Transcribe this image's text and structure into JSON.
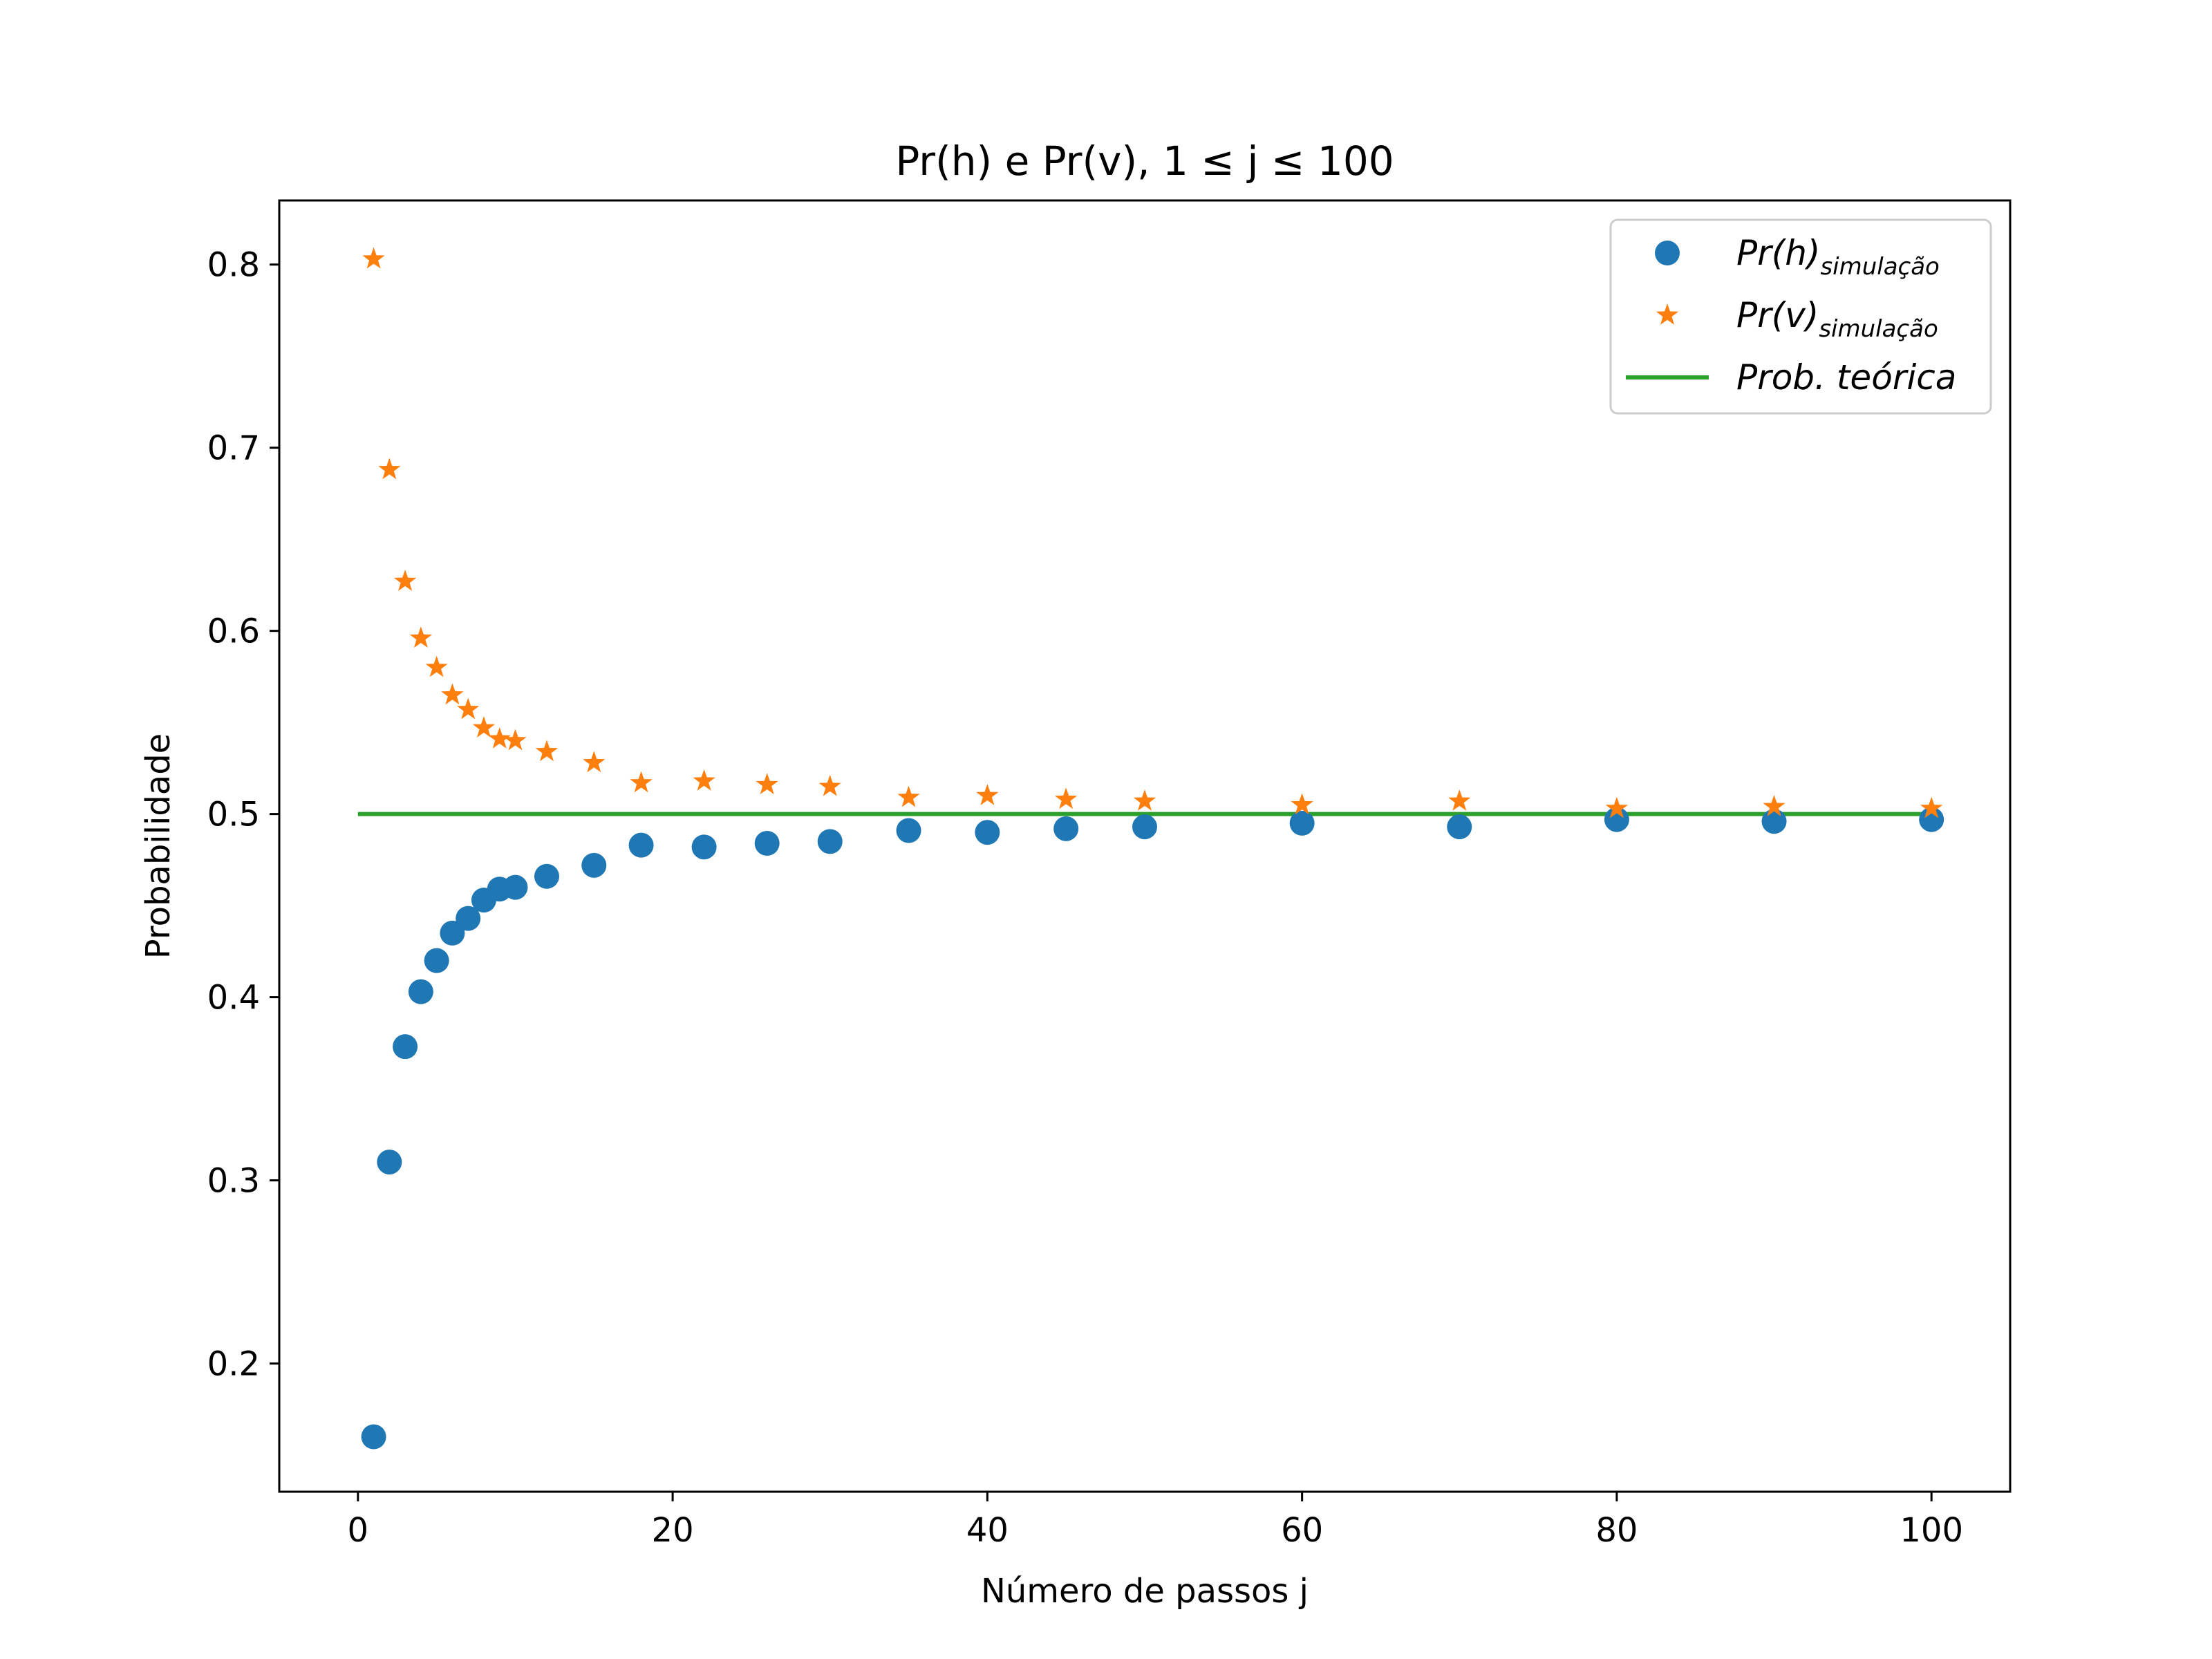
{
  "chart_data": {
    "type": "scatter",
    "title": "Pr(h) e Pr(v), 1 ≤ j ≤ 100",
    "xlabel": "Número de passos j",
    "ylabel": "Probabilidade",
    "xlim": [
      -5,
      105
    ],
    "ylim": [
      0.13,
      0.835
    ],
    "xticks": [
      0,
      20,
      40,
      60,
      80,
      100
    ],
    "xtick_labels": [
      "0",
      "20",
      "40",
      "60",
      "80",
      "100"
    ],
    "yticks": [
      0.2,
      0.3,
      0.4,
      0.5,
      0.6,
      0.7,
      0.8
    ],
    "ytick_labels": [
      "0.2",
      "0.3",
      "0.4",
      "0.5",
      "0.6",
      "0.7",
      "0.8"
    ],
    "grid": false,
    "legend_position": "top-right",
    "series": [
      {
        "name": "Pr(h)",
        "name_subscript": "simulação",
        "marker": "circle",
        "color": "#1f77b4",
        "x": [
          1,
          2,
          3,
          4,
          5,
          6,
          7,
          8,
          9,
          10,
          12,
          15,
          18,
          22,
          26,
          30,
          35,
          40,
          45,
          50,
          60,
          70,
          80,
          90,
          100
        ],
        "y": [
          0.16,
          0.31,
          0.373,
          0.403,
          0.42,
          0.435,
          0.443,
          0.453,
          0.459,
          0.46,
          0.466,
          0.472,
          0.483,
          0.482,
          0.484,
          0.485,
          0.491,
          0.49,
          0.492,
          0.493,
          0.495,
          0.493,
          0.497,
          0.496,
          0.497
        ]
      },
      {
        "name": "Pr(v)",
        "name_subscript": "simulação",
        "marker": "star",
        "color": "#ff7f0e",
        "x": [
          1,
          2,
          3,
          4,
          5,
          6,
          7,
          8,
          9,
          10,
          12,
          15,
          18,
          22,
          26,
          30,
          35,
          40,
          45,
          50,
          60,
          70,
          80,
          90,
          100
        ],
        "y": [
          0.803,
          0.688,
          0.627,
          0.596,
          0.58,
          0.565,
          0.557,
          0.547,
          0.541,
          0.54,
          0.534,
          0.528,
          0.517,
          0.518,
          0.516,
          0.515,
          0.509,
          0.51,
          0.508,
          0.507,
          0.505,
          0.507,
          0.503,
          0.504,
          0.503
        ]
      },
      {
        "name": "Prob. teórica",
        "marker": "line",
        "color": "#2ca02c",
        "x": [
          0,
          100
        ],
        "y": [
          0.5,
          0.5
        ]
      }
    ]
  }
}
